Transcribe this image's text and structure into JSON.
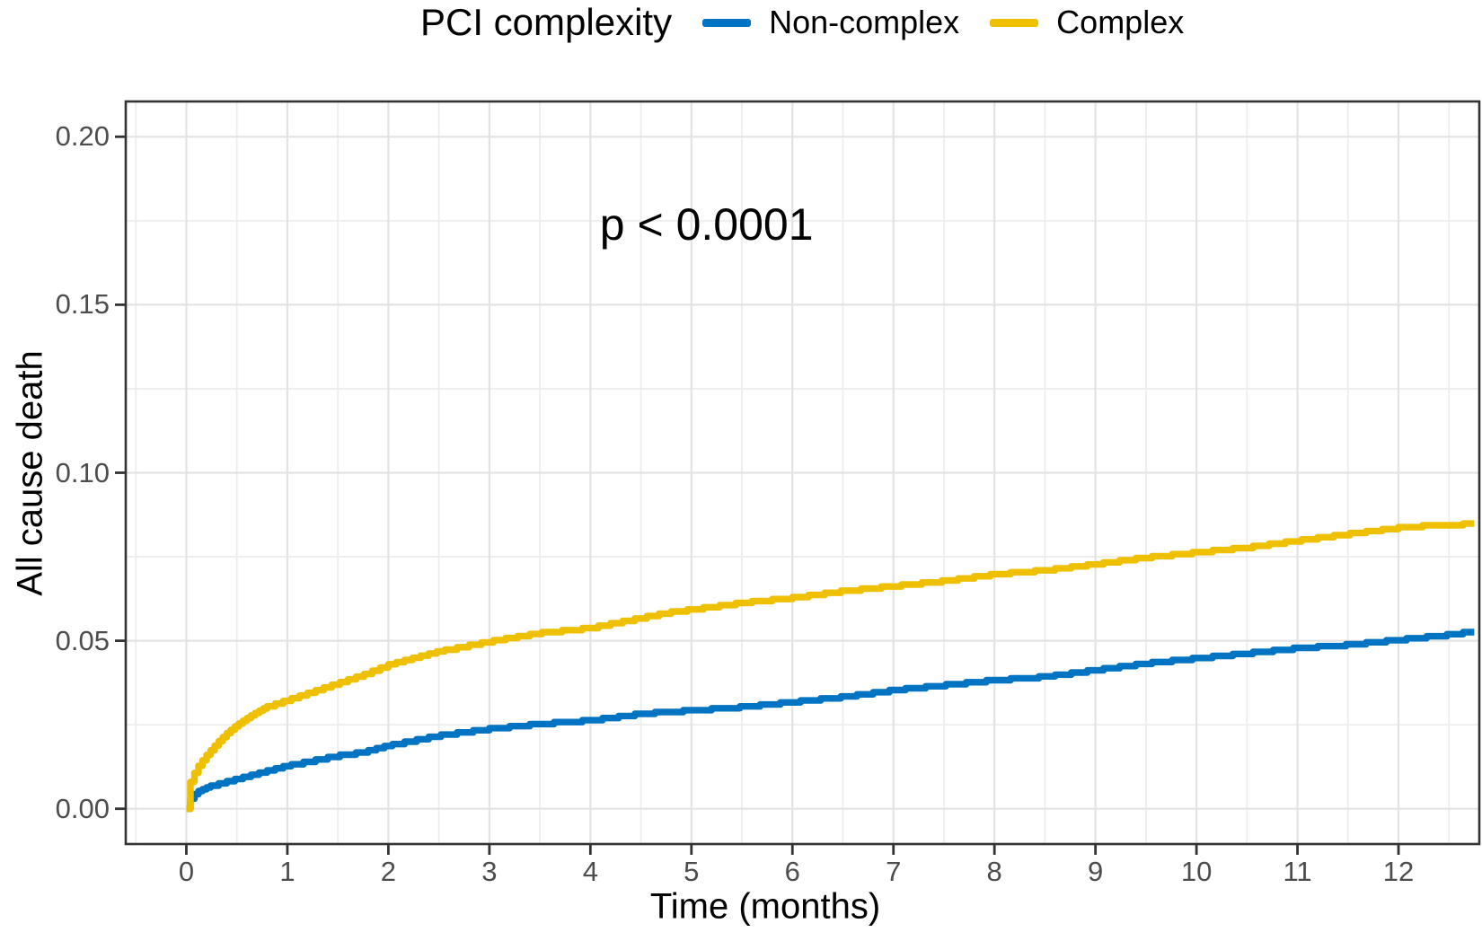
{
  "legend": {
    "title": "PCI complexity",
    "items": [
      {
        "label": "Non-complex",
        "color": "#0073C2"
      },
      {
        "label": "Complex",
        "color": "#EFC000"
      }
    ]
  },
  "colors": {
    "panel_border": "#333333",
    "grid_major": "#E3E3E3",
    "grid_minor": "#EDEDED",
    "tick_mark": "#333333",
    "tick_label": "#4D4D4D",
    "text": "#000000",
    "panel_background": "#FFFFFF"
  },
  "chart_data": {
    "type": "line",
    "subtype": "kaplan-meier-cumulative-incidence-step-curves",
    "title": "",
    "xlabel": "Time (months)",
    "ylabel": "All cause death",
    "xlim": [
      -0.6,
      12.8
    ],
    "ylim": [
      -0.0105,
      0.2105
    ],
    "x_ticks": [
      0,
      1,
      2,
      3,
      4,
      5,
      6,
      7,
      8,
      9,
      10,
      11,
      12
    ],
    "x_minor_ticks": [
      -0.5,
      0.5,
      1.5,
      2.5,
      3.5,
      4.5,
      5.5,
      6.5,
      7.5,
      8.5,
      9.5,
      10.5,
      11.5,
      12.5
    ],
    "y_ticks": [
      0,
      0.05,
      0.1,
      0.15,
      0.2
    ],
    "y_tick_labels": [
      "0.00",
      "0.05",
      "0.10",
      "0.15",
      "0.20"
    ],
    "y_minor_ticks": [
      0.025,
      0.075,
      0.125,
      0.175
    ],
    "grid": true,
    "legend_position": "top",
    "annotation": {
      "text": "p < 0.0001",
      "x": 5.15,
      "y": 0.174
    },
    "series": [
      {
        "name": "Non-complex",
        "color": "#0073C2",
        "points": [
          [
            0,
            0
          ],
          [
            0.04,
            0.003
          ],
          [
            0.1,
            0.005
          ],
          [
            0.25,
            0.007
          ],
          [
            0.5,
            0.009
          ],
          [
            0.75,
            0.011
          ],
          [
            1,
            0.013
          ],
          [
            1.25,
            0.0145
          ],
          [
            1.5,
            0.016
          ],
          [
            1.75,
            0.017
          ],
          [
            2,
            0.019
          ],
          [
            2.25,
            0.0205
          ],
          [
            2.5,
            0.022
          ],
          [
            3,
            0.024
          ],
          [
            3.5,
            0.0255
          ],
          [
            4,
            0.0265
          ],
          [
            4.5,
            0.0285
          ],
          [
            5,
            0.0295
          ],
          [
            5.5,
            0.0305
          ],
          [
            6,
            0.032
          ],
          [
            6.5,
            0.0335
          ],
          [
            7,
            0.0355
          ],
          [
            7.5,
            0.037
          ],
          [
            8,
            0.0385
          ],
          [
            8.5,
            0.0395
          ],
          [
            9,
            0.0415
          ],
          [
            9.5,
            0.0435
          ],
          [
            10,
            0.045
          ],
          [
            10.5,
            0.0465
          ],
          [
            11,
            0.048
          ],
          [
            11.5,
            0.049
          ],
          [
            12,
            0.0505
          ],
          [
            12.5,
            0.052
          ],
          [
            12.75,
            0.053
          ]
        ]
      },
      {
        "name": "Complex",
        "color": "#EFC000",
        "points": [
          [
            0,
            0
          ],
          [
            0.04,
            0.008
          ],
          [
            0.1,
            0.012
          ],
          [
            0.2,
            0.016
          ],
          [
            0.3,
            0.0195
          ],
          [
            0.4,
            0.0225
          ],
          [
            0.5,
            0.025
          ],
          [
            0.65,
            0.028
          ],
          [
            0.8,
            0.0305
          ],
          [
            1,
            0.0325
          ],
          [
            1.25,
            0.035
          ],
          [
            1.5,
            0.0375
          ],
          [
            1.75,
            0.04
          ],
          [
            2,
            0.043
          ],
          [
            2.25,
            0.045
          ],
          [
            2.5,
            0.047
          ],
          [
            2.75,
            0.0485
          ],
          [
            3,
            0.05
          ],
          [
            3.5,
            0.0525
          ],
          [
            4,
            0.054
          ],
          [
            4.25,
            0.0555
          ],
          [
            4.5,
            0.057
          ],
          [
            4.75,
            0.0585
          ],
          [
            5,
            0.0595
          ],
          [
            5.5,
            0.0615
          ],
          [
            6,
            0.063
          ],
          [
            6.5,
            0.065
          ],
          [
            7,
            0.0665
          ],
          [
            7.5,
            0.068
          ],
          [
            8,
            0.07
          ],
          [
            8.5,
            0.0712
          ],
          [
            9,
            0.073
          ],
          [
            9.5,
            0.075
          ],
          [
            10,
            0.0765
          ],
          [
            10.5,
            0.078
          ],
          [
            11,
            0.08
          ],
          [
            11.5,
            0.082
          ],
          [
            12,
            0.0838
          ],
          [
            12.3,
            0.0845
          ],
          [
            12.75,
            0.085
          ]
        ]
      }
    ]
  }
}
